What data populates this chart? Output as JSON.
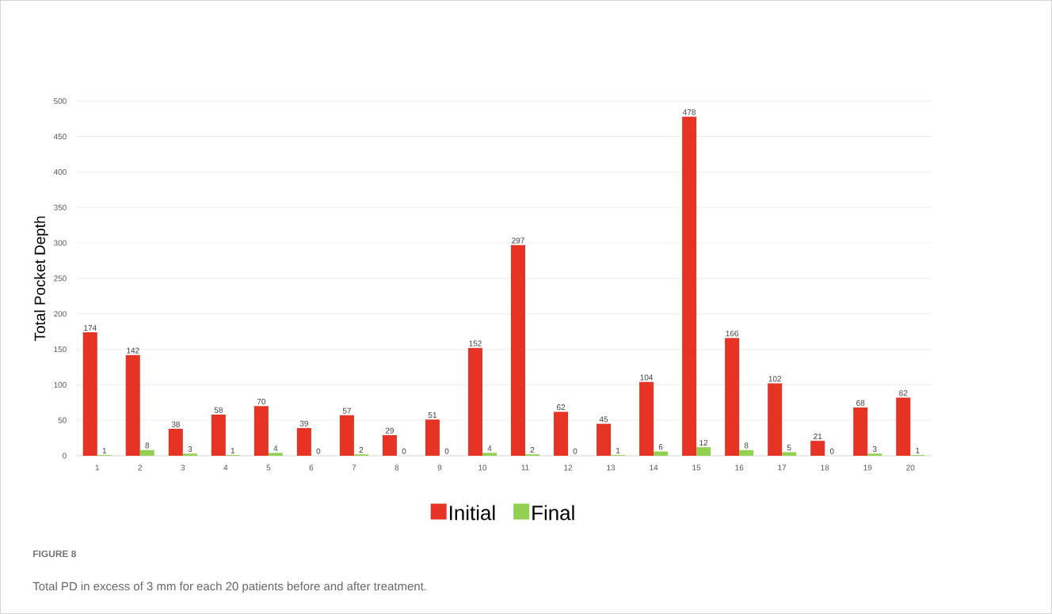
{
  "chart_data": {
    "type": "bar",
    "ylabel": "Total Pocket Depth",
    "categories": [
      "1",
      "2",
      "3",
      "4",
      "5",
      "6",
      "7",
      "8",
      "9",
      "10",
      "11",
      "12",
      "13",
      "14",
      "15",
      "16",
      "17",
      "18",
      "19",
      "20"
    ],
    "series": [
      {
        "name": "Initial",
        "color": "#e63323",
        "values": [
          174,
          142,
          38,
          58,
          70,
          39,
          57,
          29,
          51,
          152,
          297,
          62,
          45,
          104,
          478,
          166,
          102,
          21,
          68,
          82
        ]
      },
      {
        "name": "Final",
        "color": "#92d050",
        "values": [
          1,
          8,
          3,
          1,
          4,
          0,
          2,
          0,
          0,
          4,
          2,
          0,
          1,
          6,
          12,
          8,
          5,
          0,
          3,
          1
        ]
      }
    ],
    "ylim": [
      0,
      500
    ],
    "yticks": [
      0,
      50,
      100,
      150,
      200,
      250,
      300,
      350,
      400,
      450,
      500
    ],
    "grid": "y",
    "legend": "bottom",
    "data_labels": true,
    "annotations": [
      "FIGURE 8",
      "Total PD in excess of 3 mm for each 20 patients before and after treatment."
    ]
  }
}
